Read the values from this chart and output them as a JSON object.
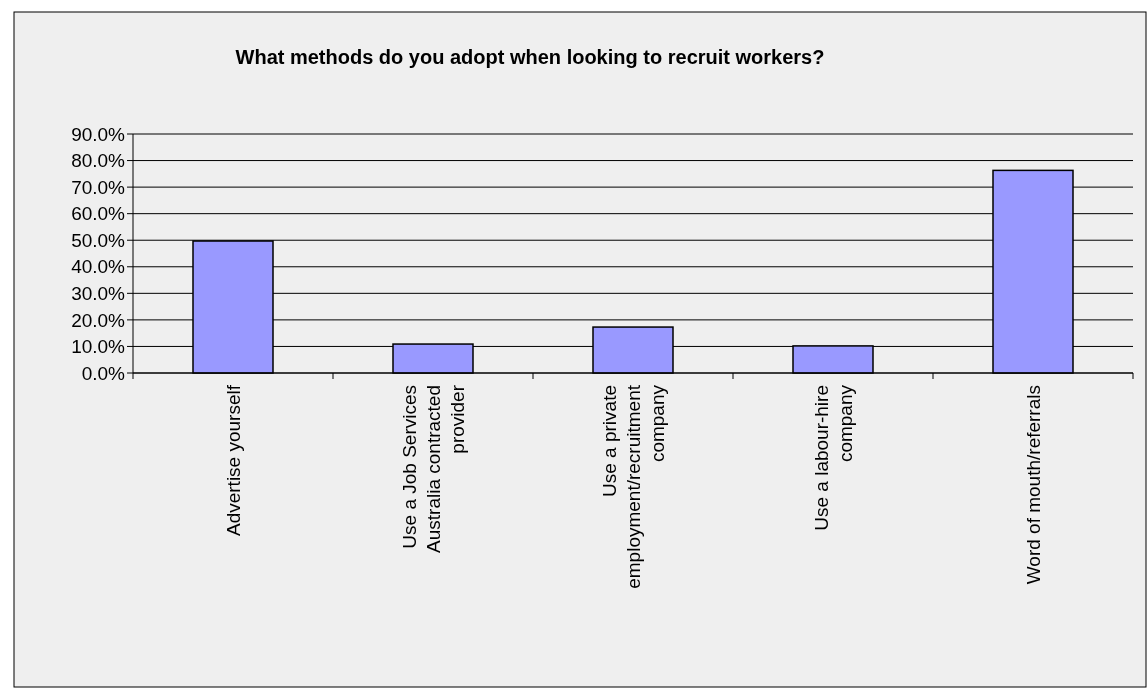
{
  "chart_data": {
    "type": "bar",
    "title": "What methods do you adopt when looking to recruit workers?",
    "categories": [
      "Advertise yourself",
      "Use a Job Services Australia contracted provider",
      "Use a private employment/recruitment company",
      "Use a labour-hire company",
      "Word of mouth/referrals"
    ],
    "values": [
      49.7,
      10.9,
      17.3,
      10.2,
      76.3
    ],
    "color": "#9999ff",
    "ylim": [
      0,
      90
    ],
    "yticks": [
      {
        "value": 0,
        "label": "0.0%"
      },
      {
        "value": 10,
        "label": "10.0%"
      },
      {
        "value": 20,
        "label": "20.0%"
      },
      {
        "value": 30,
        "label": "30.0%"
      },
      {
        "value": 40,
        "label": "40.0%"
      },
      {
        "value": 50,
        "label": "50.0%"
      },
      {
        "value": 60,
        "label": "60.0%"
      },
      {
        "value": 70,
        "label": "70.0%"
      },
      {
        "value": 80,
        "label": "80.0%"
      },
      {
        "value": 90,
        "label": "90.0%"
      }
    ],
    "grid": "y"
  }
}
